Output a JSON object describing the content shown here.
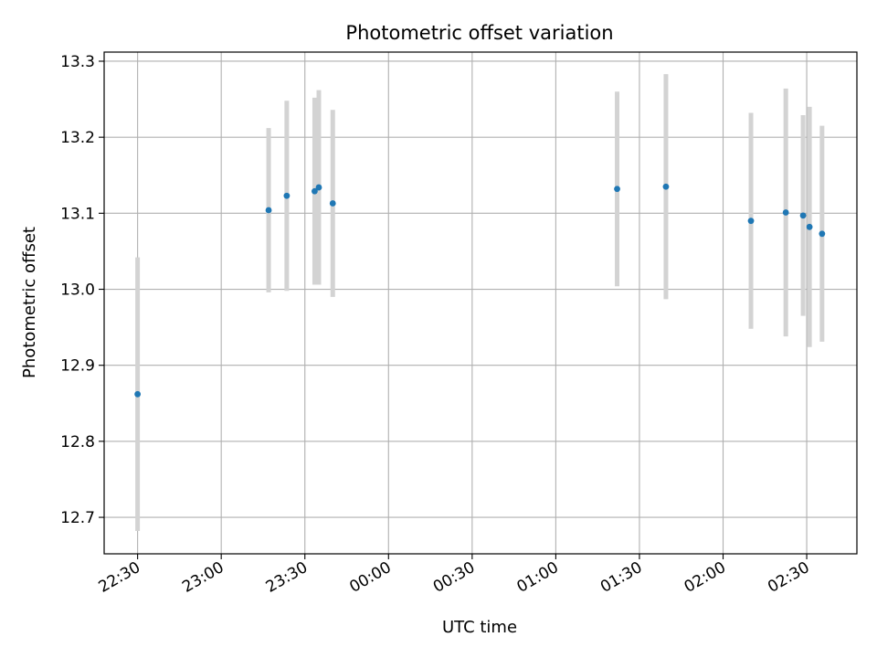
{
  "chart_data": {
    "type": "scatter",
    "title": "Photometric offset variation",
    "xlabel": "UTC time",
    "ylabel": "Photometric offset",
    "x_ticks": [
      "22:30",
      "23:00",
      "23:30",
      "00:00",
      "00:30",
      "01:00",
      "01:30",
      "02:00",
      "02:30"
    ],
    "x_tick_minutes": [
      0,
      30,
      60,
      90,
      120,
      150,
      180,
      210,
      240
    ],
    "xlim_minutes": [
      -12,
      258
    ],
    "x_tick_rotation_deg": -30,
    "y_ticks": [
      "12.7",
      "12.8",
      "12.9",
      "13.0",
      "13.1",
      "13.2",
      "13.3"
    ],
    "y_tick_values": [
      12.7,
      12.8,
      12.9,
      13.0,
      13.1,
      13.2,
      13.3
    ],
    "ylim": [
      12.652,
      13.312
    ],
    "grid": true,
    "marker_color": "#1f77b4",
    "errorbar_color": "#d3d3d3",
    "points": [
      {
        "time": "22:30",
        "t": 0,
        "y": 12.862,
        "err": 0.18
      },
      {
        "time": "23:17",
        "t": 47,
        "y": 13.104,
        "err": 0.108
      },
      {
        "time": "23:23",
        "t": 53.5,
        "y": 13.123,
        "err": 0.125
      },
      {
        "time": "23:33",
        "t": 63.5,
        "y": 13.129,
        "err": 0.123
      },
      {
        "time": "23:34",
        "t": 65,
        "y": 13.134,
        "err": 0.128
      },
      {
        "time": "23:39",
        "t": 70,
        "y": 13.113,
        "err": 0.123
      },
      {
        "time": "01:21",
        "t": 172,
        "y": 13.132,
        "err": 0.128
      },
      {
        "time": "01:39",
        "t": 189.5,
        "y": 13.135,
        "err": 0.148
      },
      {
        "time": "02:10",
        "t": 220,
        "y": 13.09,
        "err": 0.142
      },
      {
        "time": "02:22",
        "t": 232.5,
        "y": 13.101,
        "err": 0.163
      },
      {
        "time": "02:29",
        "t": 238.7,
        "y": 13.097,
        "err": 0.132
      },
      {
        "time": "02:31",
        "t": 241,
        "y": 13.082,
        "err": 0.158
      },
      {
        "time": "02:35",
        "t": 245.5,
        "y": 13.073,
        "err": 0.142
      }
    ]
  }
}
